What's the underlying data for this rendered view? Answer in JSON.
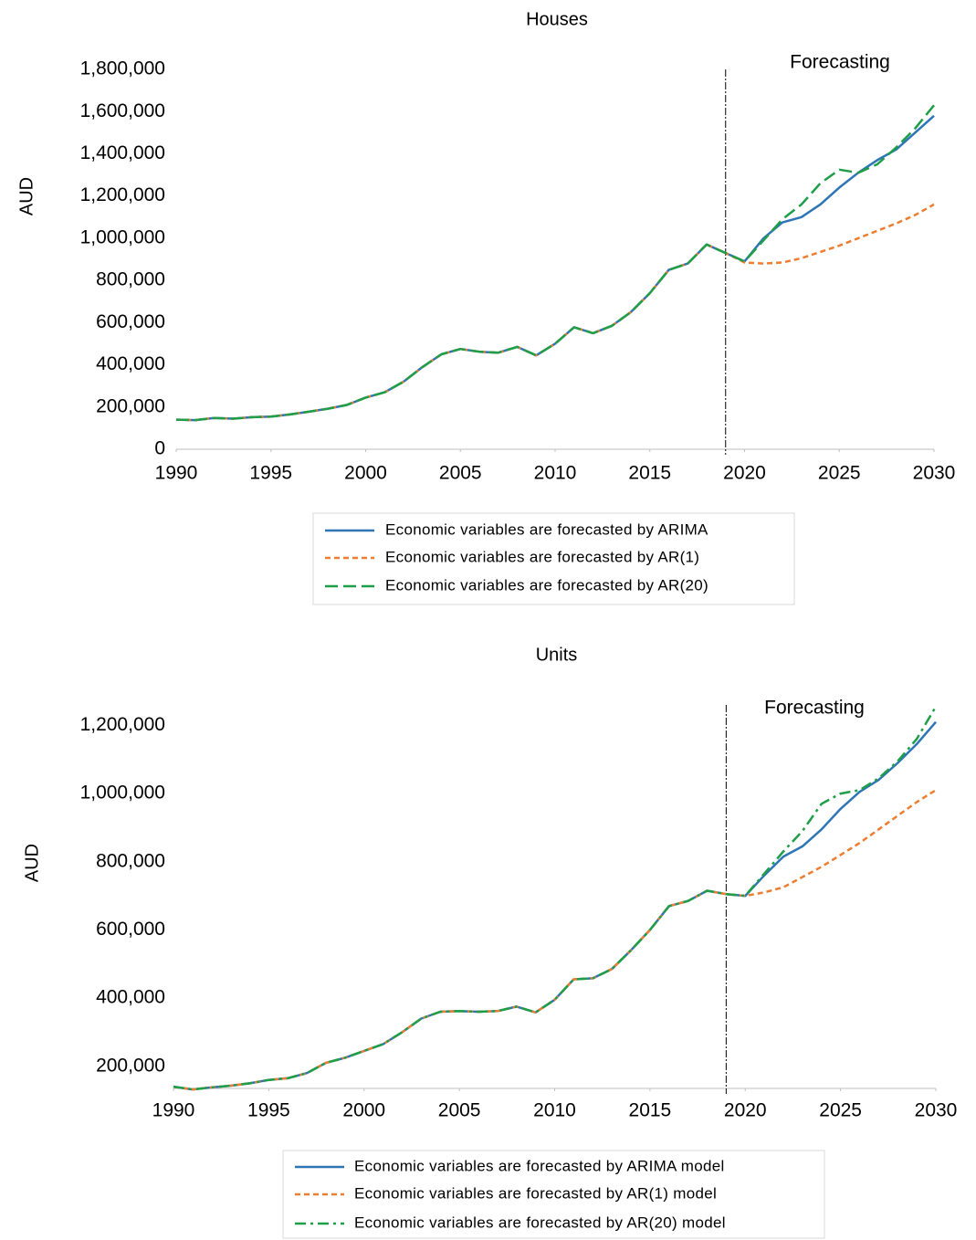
{
  "chart_data": [
    {
      "type": "line",
      "title": "Houses",
      "ylabel": "AUD",
      "annotation": "Forecasting",
      "forecast_start": 2019,
      "x": [
        1990,
        1991,
        1992,
        1993,
        1994,
        1995,
        1996,
        1997,
        1998,
        1999,
        2000,
        2001,
        2002,
        2003,
        2004,
        2005,
        2006,
        2007,
        2008,
        2009,
        2010,
        2011,
        2012,
        2013,
        2014,
        2015,
        2016,
        2017,
        2018,
        2019,
        2020,
        2021,
        2022,
        2023,
        2024,
        2025,
        2026,
        2027,
        2028,
        2029,
        2030
      ],
      "xlim": [
        1990,
        2030
      ],
      "xticks": [
        1990,
        1995,
        2000,
        2005,
        2010,
        2015,
        2020,
        2025,
        2030
      ],
      "ylim": [
        0,
        1800000
      ],
      "yticks": [
        0,
        {
          "value": 200000,
          "label": "200,000"
        },
        {
          "value": 400000,
          "label": "400,000"
        },
        {
          "value": 600000,
          "label": "600,000"
        },
        {
          "value": 800000,
          "label": "800,000"
        },
        {
          "value": 1000000,
          "label": "1,000,000"
        },
        {
          "value": 1200000,
          "label": "1,200,000"
        },
        {
          "value": 1400000,
          "label": "1,400,000"
        },
        {
          "value": 1600000,
          "label": "1,600,000"
        },
        {
          "value": 1800000,
          "label": "1,800,000"
        }
      ],
      "legend": "bottom",
      "series": [
        {
          "name": "Economic variables are forecasted by ARIMA",
          "color": "#2e75b6",
          "style": "solid",
          "values": [
            140000,
            138000,
            148000,
            145000,
            152000,
            155000,
            165000,
            178000,
            192000,
            210000,
            245000,
            270000,
            320000,
            390000,
            450000,
            475000,
            462000,
            458000,
            485000,
            445000,
            500000,
            578000,
            550000,
            585000,
            650000,
            740000,
            850000,
            880000,
            970000,
            930000,
            890000,
            1000000,
            1075000,
            1100000,
            1160000,
            1240000,
            1310000,
            1370000,
            1420000,
            1500000,
            1580000
          ]
        },
        {
          "name": "Economic variables are forecasted by AR(1)",
          "color": "#ed7d31",
          "style": "dashed",
          "values": [
            140000,
            138000,
            148000,
            145000,
            152000,
            155000,
            165000,
            178000,
            192000,
            210000,
            245000,
            270000,
            320000,
            390000,
            450000,
            475000,
            462000,
            458000,
            485000,
            445000,
            500000,
            578000,
            550000,
            585000,
            650000,
            740000,
            850000,
            880000,
            970000,
            930000,
            885000,
            880000,
            885000,
            905000,
            935000,
            965000,
            1000000,
            1035000,
            1070000,
            1110000,
            1160000
          ]
        },
        {
          "name": "Economic variables are forecasted by AR(20)",
          "color": "#1f9e48",
          "style": "longdash",
          "values": [
            140000,
            138000,
            148000,
            145000,
            152000,
            155000,
            165000,
            178000,
            192000,
            210000,
            245000,
            270000,
            320000,
            390000,
            450000,
            475000,
            462000,
            458000,
            485000,
            445000,
            500000,
            578000,
            550000,
            585000,
            650000,
            740000,
            850000,
            880000,
            970000,
            930000,
            890000,
            990000,
            1090000,
            1160000,
            1260000,
            1325000,
            1310000,
            1350000,
            1430000,
            1520000,
            1630000
          ]
        }
      ]
    },
    {
      "type": "line",
      "title": "Units",
      "ylabel": "AUD",
      "annotation": "Forecasting",
      "forecast_start": 2019,
      "x": [
        1990,
        1991,
        1992,
        1993,
        1994,
        1995,
        1996,
        1997,
        1998,
        1999,
        2000,
        2001,
        2002,
        2003,
        2004,
        2005,
        2006,
        2007,
        2008,
        2009,
        2010,
        2011,
        2012,
        2013,
        2014,
        2015,
        2016,
        2017,
        2018,
        2019,
        2020,
        2021,
        2022,
        2023,
        2024,
        2025,
        2026,
        2027,
        2028,
        2029,
        2030
      ],
      "xlim": [
        1990,
        2030
      ],
      "xticks": [
        1990,
        1995,
        2000,
        2005,
        2010,
        2015,
        2020,
        2025,
        2030
      ],
      "ylim": [
        135000,
        1260000
      ],
      "yticks": [
        {
          "value": 200000,
          "label": "200,000"
        },
        {
          "value": 400000,
          "label": "400,000"
        },
        {
          "value": 600000,
          "label": "600,000"
        },
        {
          "value": 800000,
          "label": "800,000"
        },
        {
          "value": 1000000,
          "label": "1,000,000"
        },
        {
          "value": 1200000,
          "label": "1,200,000"
        }
      ],
      "legend": "bottom",
      "series": [
        {
          "name": "Economic variables are forecasted by ARIMA model",
          "color": "#2e75b6",
          "style": "solid",
          "values": [
            140000,
            132000,
            138000,
            143000,
            150000,
            160000,
            165000,
            180000,
            210000,
            225000,
            245000,
            265000,
            300000,
            340000,
            360000,
            362000,
            360000,
            362000,
            375000,
            358000,
            395000,
            455000,
            458000,
            485000,
            540000,
            600000,
            670000,
            685000,
            715000,
            705000,
            700000,
            760000,
            815000,
            845000,
            895000,
            955000,
            1005000,
            1040000,
            1090000,
            1145000,
            1210000
          ]
        },
        {
          "name": "Economic variables are forecasted by AR(1) model",
          "color": "#ed7d31",
          "style": "dashed",
          "values": [
            140000,
            132000,
            138000,
            143000,
            150000,
            160000,
            165000,
            180000,
            210000,
            225000,
            245000,
            265000,
            300000,
            340000,
            360000,
            362000,
            360000,
            362000,
            375000,
            358000,
            395000,
            455000,
            458000,
            485000,
            540000,
            600000,
            670000,
            685000,
            715000,
            705000,
            700000,
            710000,
            725000,
            755000,
            785000,
            820000,
            855000,
            895000,
            935000,
            975000,
            1010000
          ]
        },
        {
          "name": "Economic variables are forecasted by AR(20) model",
          "color": "#1f9e48",
          "style": "dashdot",
          "values": [
            140000,
            132000,
            138000,
            143000,
            150000,
            160000,
            165000,
            180000,
            210000,
            225000,
            245000,
            265000,
            300000,
            340000,
            360000,
            362000,
            360000,
            362000,
            375000,
            358000,
            395000,
            455000,
            458000,
            485000,
            540000,
            600000,
            670000,
            685000,
            715000,
            705000,
            700000,
            765000,
            830000,
            890000,
            970000,
            1000000,
            1010000,
            1045000,
            1095000,
            1160000,
            1255000
          ]
        }
      ]
    }
  ]
}
